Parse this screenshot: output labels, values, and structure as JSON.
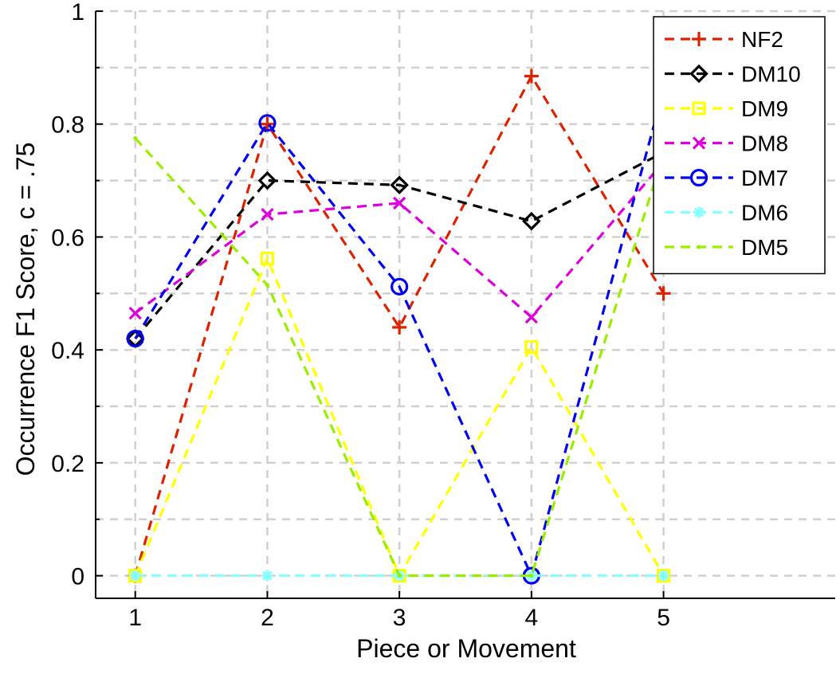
{
  "chart_data": {
    "type": "line",
    "title": "",
    "xlabel": "Piece or Movement",
    "ylabel": "Occurrence F1 Score, c = .75",
    "xlim": [
      0.7,
      6.3
    ],
    "ylim": [
      -0.04,
      1.0
    ],
    "x_ticks": [
      1,
      2,
      3,
      4,
      5
    ],
    "x_tick_labels": [
      "1",
      "2",
      "3",
      "4",
      "5"
    ],
    "y_ticks": [
      0,
      0.2,
      0.4,
      0.6,
      0.8,
      1
    ],
    "y_tick_labels": [
      "0",
      "0.2",
      "0.4",
      "0.6",
      "0.8",
      "1"
    ],
    "grid": true,
    "legend_position": "top-right",
    "x": [
      1,
      2,
      3,
      4,
      5
    ],
    "series": [
      {
        "name": "NF2",
        "color": "#dd2200",
        "marker": "plus",
        "values": [
          0,
          0.8,
          0.44,
          0.885,
          0.5
        ]
      },
      {
        "name": "DM10",
        "color": "#000000",
        "marker": "diamond",
        "values": [
          0.42,
          0.7,
          0.692,
          0.628,
          0.75
        ]
      },
      {
        "name": "DM9",
        "color": "#ffff00",
        "marker": "square",
        "values": [
          0,
          0.562,
          0,
          0.405,
          0
        ]
      },
      {
        "name": "DM8",
        "color": "#dd00dd",
        "marker": "x",
        "values": [
          0.465,
          0.64,
          0.66,
          0.458,
          0.733
        ]
      },
      {
        "name": "DM7",
        "color": "#0000ee",
        "marker": "circle",
        "values": [
          0.42,
          0.802,
          0.512,
          0,
          0.86
        ]
      },
      {
        "name": "DM6",
        "color": "#88ffff",
        "marker": "star",
        "values": [
          0,
          0,
          0,
          0,
          0
        ]
      },
      {
        "name": "DM5",
        "color": "#99ee00",
        "marker": "point",
        "values": [
          0.775,
          0.515,
          0,
          0,
          0.748
        ]
      }
    ]
  }
}
